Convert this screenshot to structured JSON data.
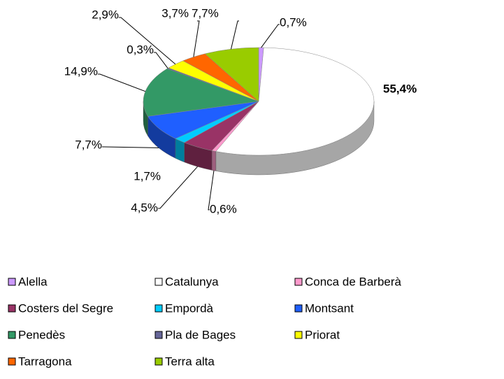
{
  "chart_data": {
    "type": "pie",
    "categories": [
      "Alella",
      "Catalunya",
      "Conca de Barberà",
      "Costers del Segre",
      "Empordà",
      "Montsant",
      "Penedès",
      "Pla de Bages",
      "Priorat",
      "Tarragona",
      "Terra alta"
    ],
    "values": [
      0.7,
      55.4,
      0.6,
      4.5,
      1.7,
      7.7,
      14.9,
      0.3,
      2.9,
      3.7,
      7.7
    ],
    "value_labels": [
      "0,7%",
      "55,4%",
      "0,6%",
      "4,5%",
      "1,7%",
      "7,7%",
      "14,9%",
      "0,3%",
      "2,9%",
      "3,7%",
      "7,7%"
    ],
    "colors": [
      "#cc99ff",
      "#ffffff",
      "#ff99cc",
      "#993366",
      "#00ccff",
      "#1f5fff",
      "#339966",
      "#666699",
      "#ffff00",
      "#ff6600",
      "#99cc00"
    ],
    "legend": "bottom"
  }
}
